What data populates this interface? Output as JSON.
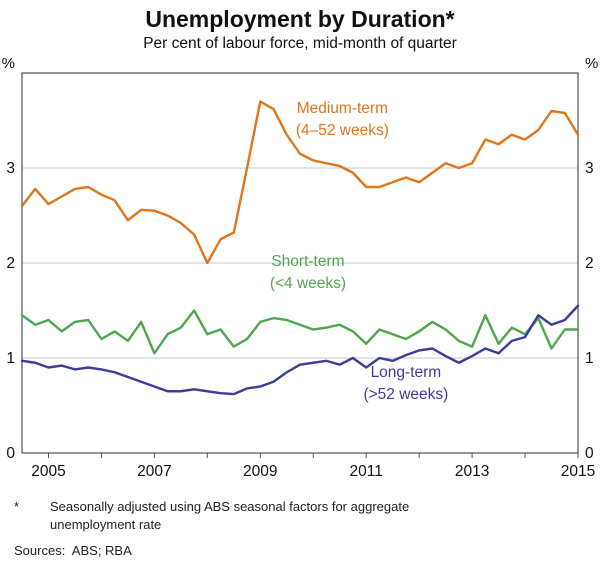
{
  "title": "Unemployment by Duration*",
  "subtitle": "Per cent of labour force, mid-month of quarter",
  "chart_data": {
    "type": "line",
    "x_start": 2004.5,
    "x_step": 0.25,
    "xlim": [
      2004.5,
      2015.0
    ],
    "ylim": [
      0,
      4
    ],
    "yticks": [
      0,
      1,
      2,
      3
    ],
    "xticks": [
      2005,
      2007,
      2009,
      2011,
      2013,
      2015
    ],
    "y_unit": "%",
    "grid": "horizontal",
    "legend_position": "inline-annotations",
    "series": [
      {
        "name": "Medium-term",
        "sub": "(4–52 weeks)",
        "color": "#E0751C",
        "label_pos": [
          2010.55,
          3.58
        ],
        "values": [
          2.6,
          2.78,
          2.62,
          2.7,
          2.78,
          2.8,
          2.72,
          2.66,
          2.45,
          2.56,
          2.55,
          2.5,
          2.42,
          2.3,
          2.0,
          2.25,
          2.32,
          3.0,
          3.7,
          3.62,
          3.35,
          3.15,
          3.08,
          3.05,
          3.02,
          2.95,
          2.8,
          2.8,
          2.85,
          2.9,
          2.85,
          2.95,
          3.05,
          3.0,
          3.05,
          3.3,
          3.25,
          3.35,
          3.3,
          3.4,
          3.6,
          3.58,
          3.35
        ]
      },
      {
        "name": "Short-term",
        "sub": "(<4 weeks)",
        "color": "#4FA74F",
        "label_pos": [
          2009.9,
          1.97
        ],
        "values": [
          1.45,
          1.35,
          1.4,
          1.28,
          1.38,
          1.4,
          1.2,
          1.28,
          1.18,
          1.38,
          1.05,
          1.25,
          1.32,
          1.5,
          1.25,
          1.3,
          1.12,
          1.2,
          1.38,
          1.42,
          1.4,
          1.35,
          1.3,
          1.32,
          1.35,
          1.28,
          1.15,
          1.3,
          1.25,
          1.2,
          1.28,
          1.38,
          1.3,
          1.18,
          1.12,
          1.45,
          1.15,
          1.32,
          1.25,
          1.42,
          1.1,
          1.3,
          1.3
        ]
      },
      {
        "name": "Long-term",
        "sub": "(>52 weeks)",
        "color": "#3D3D99",
        "label_pos": [
          2011.75,
          0.8
        ],
        "values": [
          0.97,
          0.95,
          0.9,
          0.92,
          0.88,
          0.9,
          0.88,
          0.85,
          0.8,
          0.75,
          0.7,
          0.65,
          0.65,
          0.67,
          0.65,
          0.63,
          0.62,
          0.68,
          0.7,
          0.75,
          0.85,
          0.93,
          0.95,
          0.97,
          0.93,
          1.0,
          0.9,
          1.0,
          0.97,
          1.03,
          1.08,
          1.1,
          1.02,
          0.95,
          1.02,
          1.1,
          1.05,
          1.18,
          1.22,
          1.45,
          1.35,
          1.4,
          1.55
        ]
      }
    ]
  },
  "footnote": {
    "marker": "*",
    "text": "Seasonally adjusted using ABS seasonal factors for aggregate unemployment rate"
  },
  "sources": "Sources:  ABS; RBA"
}
